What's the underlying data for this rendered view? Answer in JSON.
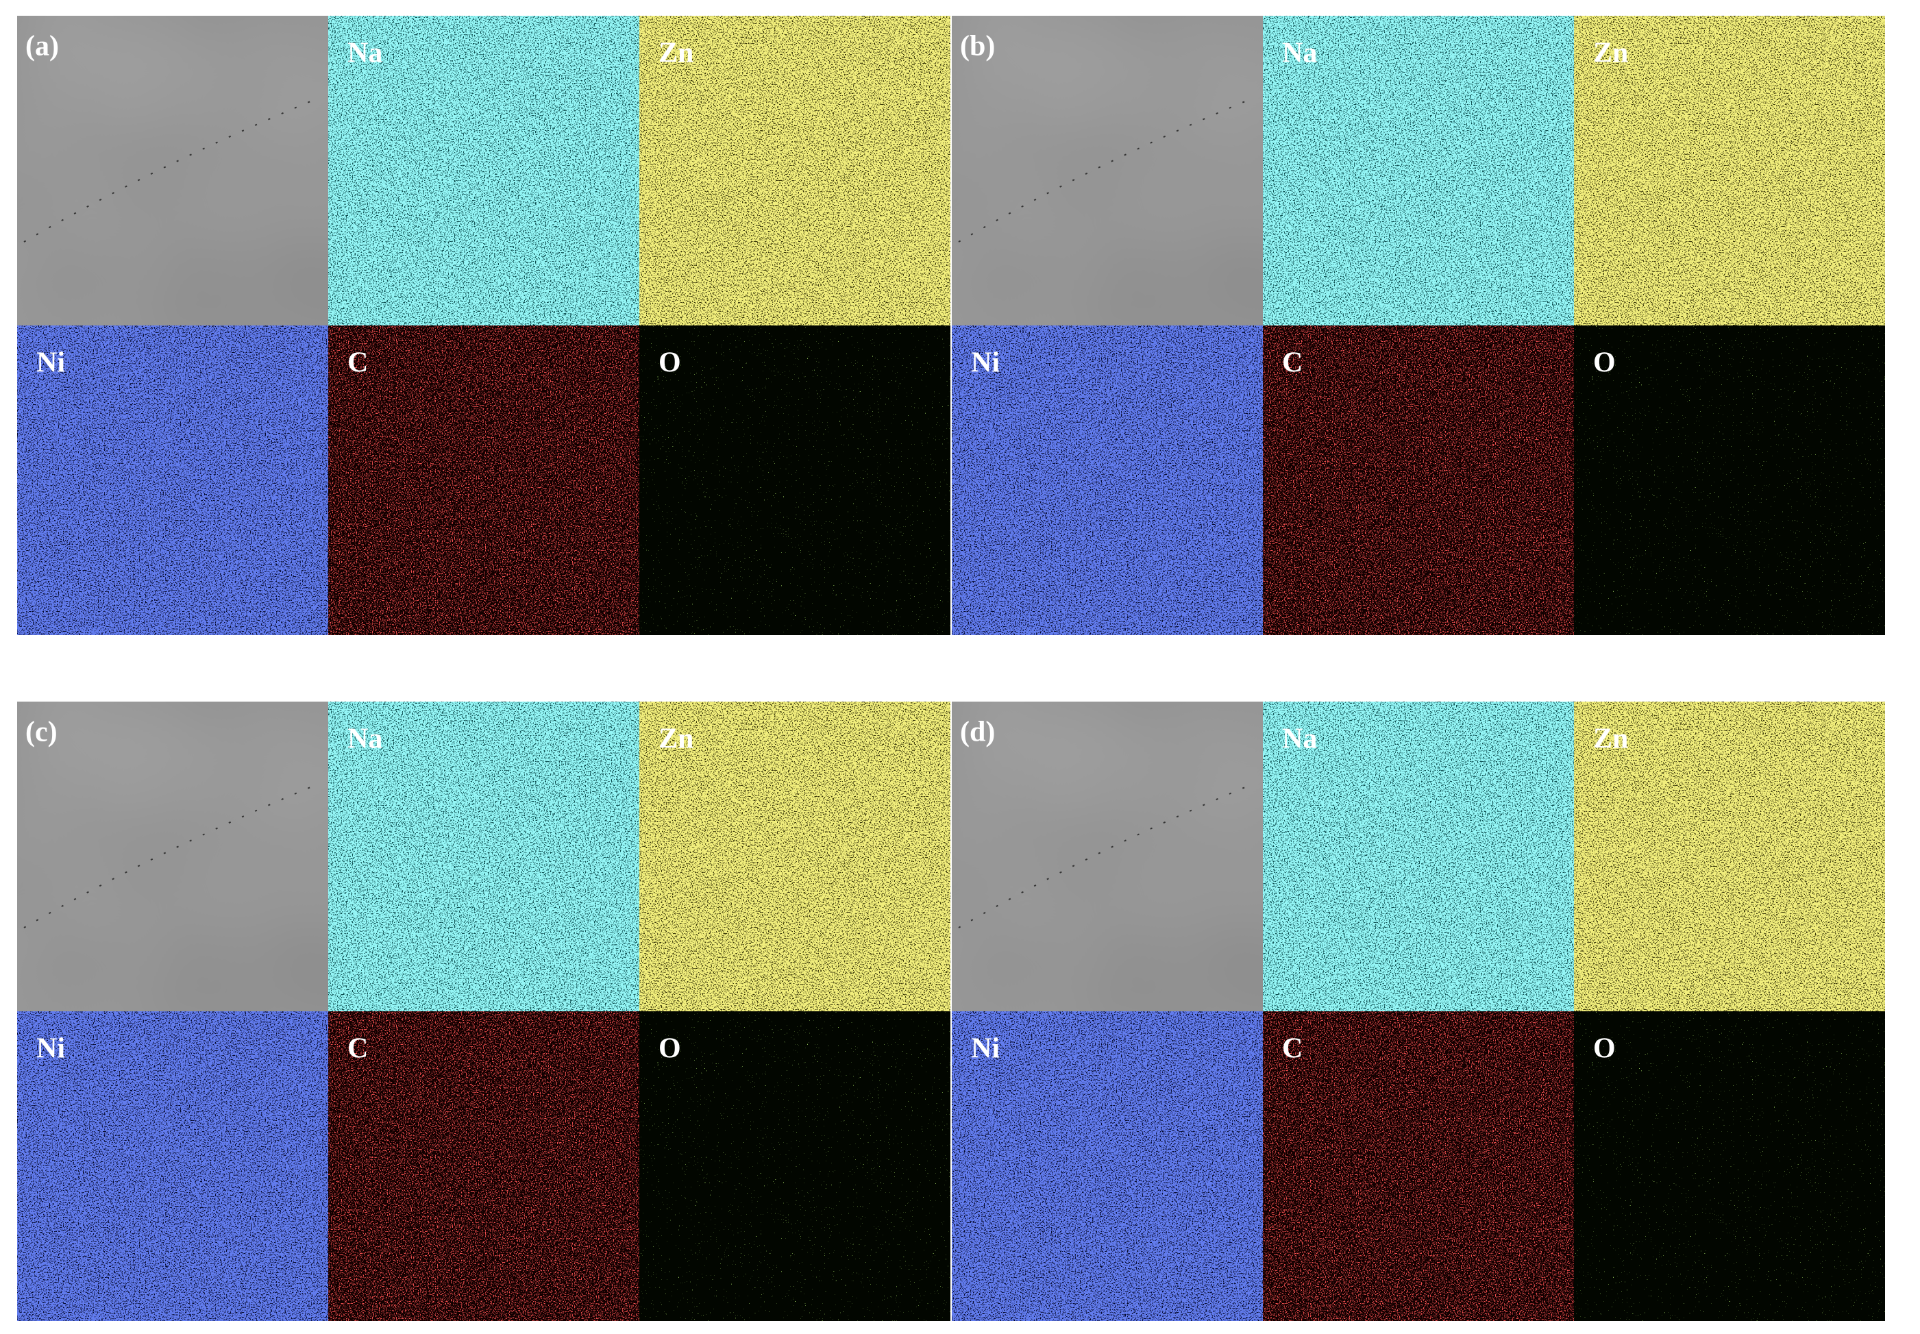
{
  "panels": [
    {
      "label": "(a)",
      "maps": [
        "Na",
        "Zn",
        "Ni",
        "C",
        "O"
      ]
    },
    {
      "label": "(b)",
      "maps": [
        "Na",
        "Zn",
        "Ni",
        "C",
        "O"
      ]
    },
    {
      "label": "(c)",
      "maps": [
        "Na",
        "Zn",
        "Ni",
        "C",
        "O"
      ]
    },
    {
      "label": "(d)",
      "maps": [
        "Na",
        "Zn",
        "Ni",
        "C",
        "O"
      ]
    }
  ]
}
